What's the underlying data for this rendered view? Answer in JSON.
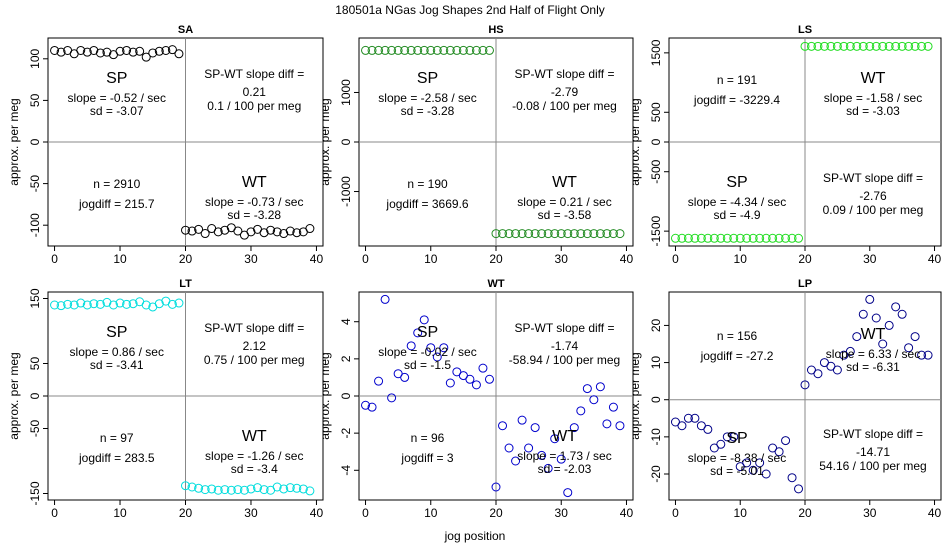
{
  "figure": {
    "title": "180501a   NGas Jog Shapes 2nd Half of Flight Only",
    "xlabel": "jog position",
    "ylabel": "approx. per meg"
  },
  "chart_data": [
    {
      "type": "scatter",
      "title": "SA",
      "color": "#000000",
      "xlim": [
        -1,
        41
      ],
      "ylim": [
        -125,
        125
      ],
      "xticks": [
        "0",
        "10",
        "20",
        "30",
        "40"
      ],
      "xtick_values": [
        0,
        10,
        20,
        30,
        40
      ],
      "yticks": [
        "-100",
        "-50",
        "0",
        "50",
        "100"
      ],
      "ytick_values": [
        -100,
        -50,
        0,
        50,
        100
      ],
      "x": [
        0,
        1,
        2,
        3,
        4,
        5,
        6,
        7,
        8,
        9,
        10,
        11,
        12,
        13,
        14,
        15,
        16,
        17,
        18,
        19,
        20,
        21,
        22,
        23,
        24,
        25,
        26,
        27,
        28,
        29,
        30,
        31,
        32,
        33,
        34,
        35,
        36,
        37,
        38,
        39
      ],
      "y": [
        110,
        108,
        110,
        106,
        110,
        108,
        110,
        107,
        108,
        105,
        109,
        110,
        108,
        109,
        102,
        107,
        109,
        110,
        111,
        106,
        -106,
        -107,
        -105,
        -110,
        -104,
        -108,
        -106,
        -103,
        -107,
        -112,
        -108,
        -105,
        -109,
        -106,
        -108,
        -110,
        -107,
        -109,
        -108,
        -104
      ],
      "annotations": {
        "quad_top_left": {
          "label": "SP",
          "slope": "slope = -0.52 / sec",
          "sd": "sd = -3.07"
        },
        "quad_top_right": {
          "line1": "SP-WT slope diff =",
          "line2": "0.21",
          "line3": "0.1 / 100 per meg"
        },
        "quad_bottom_left": {
          "n": "n = 2910",
          "jogdiff": "jogdiff = 215.7"
        },
        "quad_bottom_right": {
          "label": "WT",
          "slope": "slope = -0.73 / sec",
          "sd": "sd = -3.28"
        }
      }
    },
    {
      "type": "scatter",
      "title": "HS",
      "color": "#228B22",
      "xlim": [
        -1,
        41
      ],
      "ylim": [
        -2100,
        2100
      ],
      "xticks": [
        "0",
        "10",
        "20",
        "30",
        "40"
      ],
      "xtick_values": [
        0,
        10,
        20,
        30,
        40
      ],
      "yticks": [
        "-1000",
        "0",
        "1000"
      ],
      "ytick_values": [
        -1000,
        0,
        1000
      ],
      "x": [
        0,
        1,
        2,
        3,
        4,
        5,
        6,
        7,
        8,
        9,
        10,
        11,
        12,
        13,
        14,
        15,
        16,
        17,
        18,
        19,
        20,
        21,
        22,
        23,
        24,
        25,
        26,
        27,
        28,
        29,
        30,
        31,
        32,
        33,
        34,
        35,
        36,
        37,
        38,
        39
      ],
      "y": [
        1850,
        1850,
        1850,
        1850,
        1850,
        1850,
        1850,
        1850,
        1850,
        1850,
        1850,
        1850,
        1850,
        1850,
        1850,
        1850,
        1850,
        1850,
        1850,
        1850,
        -1850,
        -1850,
        -1850,
        -1850,
        -1850,
        -1850,
        -1850,
        -1850,
        -1850,
        -1850,
        -1850,
        -1850,
        -1850,
        -1850,
        -1850,
        -1850,
        -1850,
        -1850,
        -1850,
        -1850
      ],
      "annotations": {
        "quad_top_left": {
          "label": "SP",
          "slope": "slope = -2.58 / sec",
          "sd": "sd = -3.28"
        },
        "quad_top_right": {
          "line1": "SP-WT slope diff =",
          "line2": "-2.79",
          "line3": "-0.08 / 100 per meg"
        },
        "quad_bottom_left": {
          "n": "n = 190",
          "jogdiff": "jogdiff = 3669.6"
        },
        "quad_bottom_right": {
          "label": "WT",
          "slope": "slope = 0.21 / sec",
          "sd": "sd = -3.58"
        }
      }
    },
    {
      "type": "scatter",
      "title": "LS",
      "color": "#22DD22",
      "xlim": [
        -1,
        41
      ],
      "ylim": [
        -1750,
        1750
      ],
      "xticks": [
        "0",
        "10",
        "20",
        "30",
        "40"
      ],
      "xtick_values": [
        0,
        10,
        20,
        30,
        40
      ],
      "yticks": [
        "-1500",
        "-500",
        "0",
        "500",
        "1500"
      ],
      "ytick_values": [
        -1500,
        -500,
        0,
        500,
        1500
      ],
      "x": [
        0,
        1,
        2,
        3,
        4,
        5,
        6,
        7,
        8,
        9,
        10,
        11,
        12,
        13,
        14,
        15,
        16,
        17,
        18,
        19,
        20,
        21,
        22,
        23,
        24,
        25,
        26,
        27,
        28,
        29,
        30,
        31,
        32,
        33,
        34,
        35,
        36,
        37,
        38,
        39
      ],
      "y": [
        -1620,
        -1620,
        -1620,
        -1620,
        -1620,
        -1620,
        -1620,
        -1620,
        -1620,
        -1620,
        -1620,
        -1620,
        -1620,
        -1620,
        -1620,
        -1620,
        -1620,
        -1620,
        -1620,
        -1620,
        1610,
        1610,
        1610,
        1610,
        1610,
        1610,
        1610,
        1610,
        1610,
        1610,
        1610,
        1610,
        1610,
        1610,
        1610,
        1610,
        1610,
        1610,
        1610,
        1610
      ],
      "annotations": {
        "quad_top_left": {
          "n": "n = 191",
          "jogdiff": "jogdiff = -3229.4"
        },
        "quad_top_right": {
          "label": "WT",
          "slope": "slope = -1.58 / sec",
          "sd": "sd = -3.03"
        },
        "quad_bottom_left": {
          "label": "SP",
          "slope": "slope = -4.34 / sec",
          "sd": "sd = -4.9"
        },
        "quad_bottom_right": {
          "line1": "SP-WT slope diff =",
          "line2": "-2.76",
          "line3": "0.09 / 100 per meg"
        }
      }
    },
    {
      "type": "scatter",
      "title": "LT",
      "color": "#00DDDD",
      "xlim": [
        -1,
        41
      ],
      "ylim": [
        -160,
        160
      ],
      "xticks": [
        "0",
        "10",
        "20",
        "30",
        "40"
      ],
      "xtick_values": [
        0,
        10,
        20,
        30,
        40
      ],
      "yticks": [
        "-150",
        "-50",
        "0",
        "50",
        "150"
      ],
      "ytick_values": [
        -150,
        -50,
        0,
        50,
        150
      ],
      "x": [
        0,
        1,
        2,
        3,
        4,
        5,
        6,
        7,
        8,
        9,
        10,
        11,
        12,
        13,
        14,
        15,
        16,
        17,
        18,
        19,
        20,
        21,
        22,
        23,
        24,
        25,
        26,
        27,
        28,
        29,
        30,
        31,
        32,
        33,
        34,
        35,
        36,
        37,
        38,
        39
      ],
      "y": [
        140,
        139,
        141,
        140,
        143,
        140,
        142,
        141,
        144,
        140,
        143,
        141,
        142,
        145,
        140,
        137,
        142,
        146,
        141,
        143,
        -138,
        -140,
        -142,
        -144,
        -143,
        -145,
        -144,
        -145,
        -144,
        -145,
        -143,
        -141,
        -144,
        -145,
        -140,
        -143,
        -141,
        -142,
        -143,
        -146
      ],
      "annotations": {
        "quad_top_left": {
          "label": "SP",
          "slope": "slope = 0.86 / sec",
          "sd": "sd = -3.41"
        },
        "quad_top_right": {
          "line1": "SP-WT slope diff =",
          "line2": "2.12",
          "line3": "0.75 / 100 per meg"
        },
        "quad_bottom_left": {
          "n": "n = 97",
          "jogdiff": "jogdiff = 283.5"
        },
        "quad_bottom_right": {
          "label": "WT",
          "slope": "slope = -1.26 / sec",
          "sd": "sd = -3.4"
        }
      }
    },
    {
      "type": "scatter",
      "title": "WT",
      "color": "#0000CC",
      "xlim": [
        -1,
        41
      ],
      "ylim": [
        -5.6,
        5.6
      ],
      "xticks": [
        "0",
        "10",
        "20",
        "30",
        "40"
      ],
      "xtick_values": [
        0,
        10,
        20,
        30,
        40
      ],
      "yticks": [
        "-4",
        "-2",
        "0",
        "2",
        "4"
      ],
      "ytick_values": [
        -4,
        -2,
        0,
        2,
        4
      ],
      "x": [
        0,
        1,
        2,
        3,
        4,
        5,
        6,
        7,
        8,
        9,
        10,
        11,
        12,
        13,
        14,
        15,
        16,
        17,
        18,
        19,
        20,
        21,
        22,
        23,
        24,
        25,
        26,
        27,
        28,
        29,
        30,
        31,
        32,
        33,
        34,
        35,
        36,
        37,
        38,
        39
      ],
      "y": [
        -0.5,
        -0.6,
        0.8,
        5.2,
        -0.1,
        1.2,
        1.0,
        2.7,
        3.4,
        4.1,
        2.6,
        2.1,
        2.6,
        0.7,
        1.3,
        1.1,
        0.9,
        0.6,
        1.5,
        0.9,
        -4.9,
        -1.6,
        -2.8,
        -3.5,
        -1.3,
        -2.8,
        -1.7,
        -3.2,
        -3.9,
        -2.3,
        -3.4,
        -5.2,
        -1.7,
        -0.8,
        0.4,
        -0.2,
        0.5,
        -1.5,
        -0.6,
        -1.6
      ],
      "annotations": {
        "quad_top_left": {
          "label": "SP",
          "slope": "slope = -0.02 / sec",
          "sd": "sd = -1.5"
        },
        "quad_top_right": {
          "line1": "SP-WT slope diff =",
          "line2": "-1.74",
          "line3": "-58.94 / 100 per meg"
        },
        "quad_bottom_left": {
          "n": "n = 96",
          "jogdiff": "jogdiff = 3"
        },
        "quad_bottom_right": {
          "label": "WT",
          "slope": "slope = 1.73 / sec",
          "sd": "sd = -2.03"
        }
      }
    },
    {
      "type": "scatter",
      "title": "LP",
      "color": "#000088",
      "xlim": [
        -1,
        41
      ],
      "ylim": [
        -27,
        29
      ],
      "xticks": [
        "0",
        "10",
        "20",
        "30",
        "40"
      ],
      "xtick_values": [
        0,
        10,
        20,
        30,
        40
      ],
      "yticks": [
        "-20",
        "-10",
        "0",
        "10",
        "20"
      ],
      "ytick_values": [
        -20,
        -10,
        0,
        10,
        20
      ],
      "x": [
        0,
        1,
        2,
        3,
        4,
        5,
        6,
        7,
        8,
        9,
        10,
        11,
        12,
        13,
        14,
        15,
        16,
        17,
        18,
        19,
        20,
        21,
        22,
        23,
        24,
        25,
        26,
        27,
        28,
        29,
        30,
        31,
        32,
        33,
        34,
        35,
        36,
        37,
        38,
        39
      ],
      "y": [
        -6,
        -7,
        -5,
        -5,
        -7,
        -8,
        -13,
        -12,
        -10,
        -10,
        -18,
        -17,
        -19,
        -17,
        -20,
        -13,
        -14,
        -11,
        -21,
        -24,
        4,
        8,
        7,
        10,
        9,
        8,
        12,
        13,
        17,
        23,
        27,
        22,
        15,
        20,
        25,
        23,
        14,
        17,
        12,
        12
      ],
      "annotations": {
        "quad_top_left": {
          "n": "n = 156",
          "jogdiff": "jogdiff = -27.2"
        },
        "quad_top_right": {
          "label": "WT",
          "slope": "slope = 6.33 / sec",
          "sd": "sd = -6.31"
        },
        "quad_bottom_left": {
          "label": "SP",
          "slope": "slope = -8.38 / sec",
          "sd": "sd = -5.01"
        },
        "quad_bottom_right": {
          "line1": "SP-WT slope diff =",
          "line2": "-14.71",
          "line3": "54.16 / 100 per meg"
        }
      }
    }
  ]
}
